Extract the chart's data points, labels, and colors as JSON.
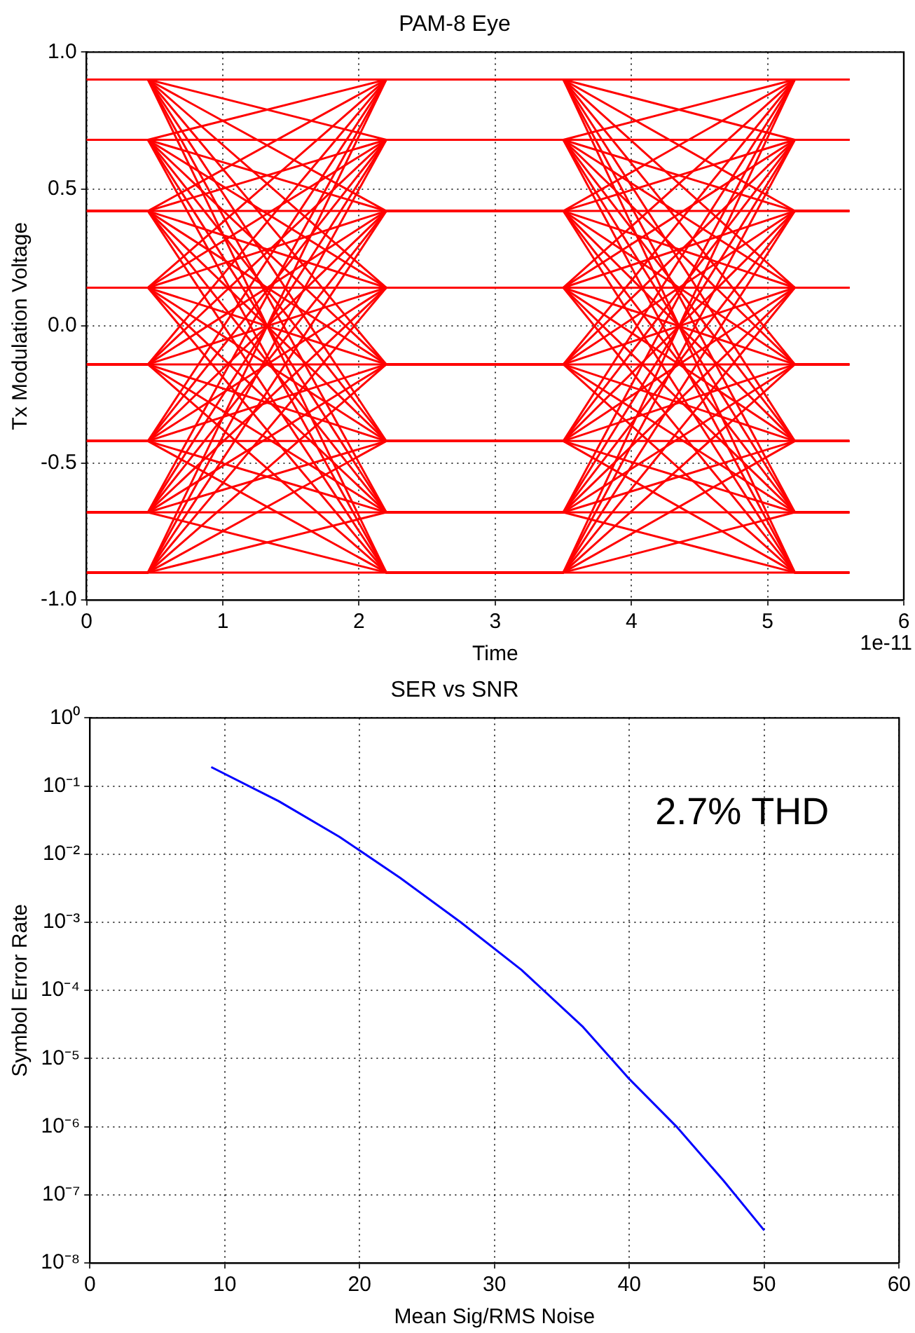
{
  "chart_data": [
    {
      "type": "line",
      "title": "PAM-8 Eye",
      "xlabel": "Time",
      "ylabel": "Tx Modulation Voltage",
      "annotations": [
        "1e-11"
      ],
      "x": [
        0,
        0.45,
        2.2,
        3.5,
        5.2,
        5.6
      ],
      "xlim": [
        0,
        6
      ],
      "xticks": [
        0,
        1,
        2,
        3,
        4,
        5,
        6
      ],
      "ylim": [
        -1,
        1
      ],
      "yticks": [
        {
          "value": -1,
          "label": "-1.0"
        },
        -0.5,
        {
          "value": 0,
          "label": "0.0"
        },
        0.5,
        {
          "value": 1,
          "label": "1.0"
        }
      ],
      "grid": true,
      "legend": false,
      "series": [
        {
          "color": "#ff0000",
          "values": [
            0.9,
            0.9,
            0.9,
            0.9,
            0.9,
            0.9
          ]
        },
        {
          "color": "#ff0000",
          "values": [
            0.9,
            0.9,
            0.68,
            0.68,
            0.68,
            0.68
          ]
        },
        {
          "color": "#ff0000",
          "values": [
            0.9,
            0.9,
            0.42,
            0.42,
            0.42,
            0.42
          ]
        },
        {
          "color": "#ff0000",
          "values": [
            0.9,
            0.9,
            0.14,
            0.14,
            0.14,
            0.14
          ]
        },
        {
          "color": "#ff0000",
          "values": [
            0.9,
            0.9,
            -0.14,
            -0.14,
            -0.14,
            -0.14
          ]
        },
        {
          "color": "#ff0000",
          "values": [
            0.9,
            0.9,
            -0.42,
            -0.42,
            -0.42,
            -0.42
          ]
        },
        {
          "color": "#ff0000",
          "values": [
            0.9,
            0.9,
            -0.68,
            -0.68,
            -0.68,
            -0.68
          ]
        },
        {
          "color": "#ff0000",
          "values": [
            0.9,
            0.9,
            -0.9,
            -0.9,
            -0.9,
            -0.9
          ]
        },
        {
          "color": "#ff0000",
          "values": [
            0.68,
            0.68,
            0.9,
            0.9,
            0.68,
            0.68
          ]
        },
        {
          "color": "#ff0000",
          "values": [
            0.68,
            0.68,
            0.68,
            0.68,
            0.42,
            0.42
          ]
        },
        {
          "color": "#ff0000",
          "values": [
            0.68,
            0.68,
            0.42,
            0.42,
            0.14,
            0.14
          ]
        },
        {
          "color": "#ff0000",
          "values": [
            0.68,
            0.68,
            0.14,
            0.14,
            -0.14,
            -0.14
          ]
        },
        {
          "color": "#ff0000",
          "values": [
            0.68,
            0.68,
            -0.14,
            -0.14,
            -0.42,
            -0.42
          ]
        },
        {
          "color": "#ff0000",
          "values": [
            0.68,
            0.68,
            -0.42,
            -0.42,
            -0.68,
            -0.68
          ]
        },
        {
          "color": "#ff0000",
          "values": [
            0.68,
            0.68,
            -0.68,
            -0.68,
            -0.9,
            -0.9
          ]
        },
        {
          "color": "#ff0000",
          "values": [
            0.68,
            0.68,
            -0.9,
            -0.9,
            0.9,
            0.9
          ]
        },
        {
          "color": "#ff0000",
          "values": [
            0.42,
            0.42,
            0.9,
            0.9,
            0.42,
            0.42
          ]
        },
        {
          "color": "#ff0000",
          "values": [
            0.42,
            0.42,
            0.68,
            0.68,
            0.14,
            0.14
          ]
        },
        {
          "color": "#ff0000",
          "values": [
            0.42,
            0.42,
            0.42,
            0.42,
            -0.14,
            -0.14
          ]
        },
        {
          "color": "#ff0000",
          "values": [
            0.42,
            0.42,
            0.14,
            0.14,
            -0.42,
            -0.42
          ]
        },
        {
          "color": "#ff0000",
          "values": [
            0.42,
            0.42,
            -0.14,
            -0.14,
            -0.68,
            -0.68
          ]
        },
        {
          "color": "#ff0000",
          "values": [
            0.42,
            0.42,
            -0.42,
            -0.42,
            -0.9,
            -0.9
          ]
        },
        {
          "color": "#ff0000",
          "values": [
            0.42,
            0.42,
            -0.68,
            -0.68,
            0.9,
            0.9
          ]
        },
        {
          "color": "#ff0000",
          "values": [
            0.42,
            0.42,
            -0.9,
            -0.9,
            0.68,
            0.68
          ]
        },
        {
          "color": "#ff0000",
          "values": [
            0.14,
            0.14,
            0.9,
            0.9,
            0.14,
            0.14
          ]
        },
        {
          "color": "#ff0000",
          "values": [
            0.14,
            0.14,
            0.68,
            0.68,
            -0.14,
            -0.14
          ]
        },
        {
          "color": "#ff0000",
          "values": [
            0.14,
            0.14,
            0.42,
            0.42,
            -0.42,
            -0.42
          ]
        },
        {
          "color": "#ff0000",
          "values": [
            0.14,
            0.14,
            0.14,
            0.14,
            -0.68,
            -0.68
          ]
        },
        {
          "color": "#ff0000",
          "values": [
            0.14,
            0.14,
            -0.14,
            -0.14,
            -0.9,
            -0.9
          ]
        },
        {
          "color": "#ff0000",
          "values": [
            0.14,
            0.14,
            -0.42,
            -0.42,
            0.9,
            0.9
          ]
        },
        {
          "color": "#ff0000",
          "values": [
            0.14,
            0.14,
            -0.68,
            -0.68,
            0.68,
            0.68
          ]
        },
        {
          "color": "#ff0000",
          "values": [
            0.14,
            0.14,
            -0.9,
            -0.9,
            0.42,
            0.42
          ]
        },
        {
          "color": "#ff0000",
          "values": [
            -0.14,
            -0.14,
            0.9,
            0.9,
            -0.14,
            -0.14
          ]
        },
        {
          "color": "#ff0000",
          "values": [
            -0.14,
            -0.14,
            0.68,
            0.68,
            -0.42,
            -0.42
          ]
        },
        {
          "color": "#ff0000",
          "values": [
            -0.14,
            -0.14,
            0.42,
            0.42,
            -0.68,
            -0.68
          ]
        },
        {
          "color": "#ff0000",
          "values": [
            -0.14,
            -0.14,
            0.14,
            0.14,
            -0.9,
            -0.9
          ]
        },
        {
          "color": "#ff0000",
          "values": [
            -0.14,
            -0.14,
            -0.14,
            -0.14,
            0.9,
            0.9
          ]
        },
        {
          "color": "#ff0000",
          "values": [
            -0.14,
            -0.14,
            -0.42,
            -0.42,
            0.68,
            0.68
          ]
        },
        {
          "color": "#ff0000",
          "values": [
            -0.14,
            -0.14,
            -0.68,
            -0.68,
            0.42,
            0.42
          ]
        },
        {
          "color": "#ff0000",
          "values": [
            -0.14,
            -0.14,
            -0.9,
            -0.9,
            0.14,
            0.14
          ]
        },
        {
          "color": "#ff0000",
          "values": [
            -0.42,
            -0.42,
            0.9,
            0.9,
            -0.42,
            -0.42
          ]
        },
        {
          "color": "#ff0000",
          "values": [
            -0.42,
            -0.42,
            0.68,
            0.68,
            -0.68,
            -0.68
          ]
        },
        {
          "color": "#ff0000",
          "values": [
            -0.42,
            -0.42,
            0.42,
            0.42,
            -0.9,
            -0.9
          ]
        },
        {
          "color": "#ff0000",
          "values": [
            -0.42,
            -0.42,
            0.14,
            0.14,
            0.9,
            0.9
          ]
        },
        {
          "color": "#ff0000",
          "values": [
            -0.42,
            -0.42,
            -0.14,
            -0.14,
            0.68,
            0.68
          ]
        },
        {
          "color": "#ff0000",
          "values": [
            -0.42,
            -0.42,
            -0.42,
            -0.42,
            0.42,
            0.42
          ]
        },
        {
          "color": "#ff0000",
          "values": [
            -0.42,
            -0.42,
            -0.68,
            -0.68,
            0.14,
            0.14
          ]
        },
        {
          "color": "#ff0000",
          "values": [
            -0.42,
            -0.42,
            -0.9,
            -0.9,
            -0.14,
            -0.14
          ]
        },
        {
          "color": "#ff0000",
          "values": [
            -0.68,
            -0.68,
            0.9,
            0.9,
            -0.68,
            -0.68
          ]
        },
        {
          "color": "#ff0000",
          "values": [
            -0.68,
            -0.68,
            0.68,
            0.68,
            -0.9,
            -0.9
          ]
        },
        {
          "color": "#ff0000",
          "values": [
            -0.68,
            -0.68,
            0.42,
            0.42,
            0.9,
            0.9
          ]
        },
        {
          "color": "#ff0000",
          "values": [
            -0.68,
            -0.68,
            0.14,
            0.14,
            0.68,
            0.68
          ]
        },
        {
          "color": "#ff0000",
          "values": [
            -0.68,
            -0.68,
            -0.14,
            -0.14,
            0.42,
            0.42
          ]
        },
        {
          "color": "#ff0000",
          "values": [
            -0.68,
            -0.68,
            -0.42,
            -0.42,
            0.14,
            0.14
          ]
        },
        {
          "color": "#ff0000",
          "values": [
            -0.68,
            -0.68,
            -0.68,
            -0.68,
            -0.14,
            -0.14
          ]
        },
        {
          "color": "#ff0000",
          "values": [
            -0.68,
            -0.68,
            -0.9,
            -0.9,
            -0.42,
            -0.42
          ]
        },
        {
          "color": "#ff0000",
          "values": [
            -0.9,
            -0.9,
            0.9,
            0.9,
            -0.9,
            -0.9
          ]
        },
        {
          "color": "#ff0000",
          "values": [
            -0.9,
            -0.9,
            0.68,
            0.68,
            0.9,
            0.9
          ]
        },
        {
          "color": "#ff0000",
          "values": [
            -0.9,
            -0.9,
            0.42,
            0.42,
            0.68,
            0.68
          ]
        },
        {
          "color": "#ff0000",
          "values": [
            -0.9,
            -0.9,
            0.14,
            0.14,
            0.42,
            0.42
          ]
        },
        {
          "color": "#ff0000",
          "values": [
            -0.9,
            -0.9,
            -0.14,
            -0.14,
            0.14,
            0.14
          ]
        },
        {
          "color": "#ff0000",
          "values": [
            -0.9,
            -0.9,
            -0.42,
            -0.42,
            -0.14,
            -0.14
          ]
        },
        {
          "color": "#ff0000",
          "values": [
            -0.9,
            -0.9,
            -0.68,
            -0.68,
            -0.42,
            -0.42
          ]
        },
        {
          "color": "#ff0000",
          "values": [
            -0.9,
            -0.9,
            -0.9,
            -0.9,
            -0.68,
            -0.68
          ]
        }
      ]
    },
    {
      "type": "line",
      "title": "SER vs SNR",
      "xlabel": "Mean Sig/RMS Noise",
      "ylabel": "Symbol Error Rate",
      "annotations": [
        "2.7% THD"
      ],
      "x": [
        9,
        14,
        18.5,
        23,
        27.5,
        32,
        36.5,
        40,
        43.5,
        47,
        50
      ],
      "xlim": [
        0,
        60
      ],
      "xticks": [
        0,
        10,
        20,
        30,
        40,
        50,
        60
      ],
      "log": "y",
      "ylim": [
        1e-08,
        1
      ],
      "yticks": [
        {
          "value": 1e-08,
          "label": "10⁻⁸"
        },
        {
          "value": 1e-07,
          "label": "10⁻⁷"
        },
        {
          "value": 1e-06,
          "label": "10⁻⁶"
        },
        {
          "value": 1e-05,
          "label": "10⁻⁵"
        },
        {
          "value": 0.0001,
          "label": "10⁻⁴"
        },
        {
          "value": 0.001,
          "label": "10⁻³"
        },
        {
          "value": 0.01,
          "label": "10⁻²"
        },
        {
          "value": 0.1,
          "label": "10⁻¹"
        },
        {
          "value": 1,
          "label": "10⁰"
        }
      ],
      "grid": true,
      "legend": false,
      "series": [
        {
          "color": "#0000ff",
          "values": [
            0.19,
            0.06,
            0.018,
            0.0045,
            0.001,
            0.0002,
            3e-05,
            5e-06,
            1e-06,
            1.6e-07,
            3e-08
          ]
        }
      ]
    }
  ]
}
